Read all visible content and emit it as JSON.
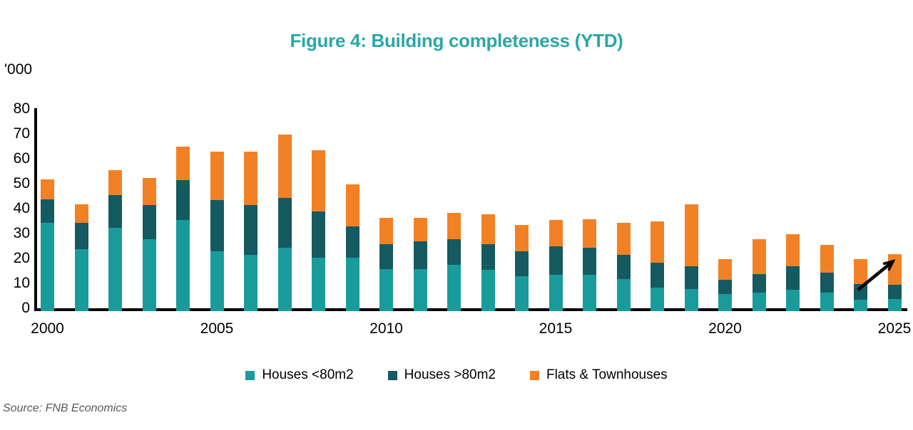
{
  "source": "Source: FNB Economics",
  "colors": {
    "title_text": "#29A8A6",
    "axis": "#000000",
    "source_text": "#595959",
    "series_teal": "#1A9B9B",
    "series_dark_teal": "#155A60",
    "series_orange": "#F28126"
  },
  "chart_data": {
    "type": "bar",
    "stacked": true,
    "title": "Figure 4: Building completeness (YTD)",
    "units_label": "'000",
    "xlabel": "",
    "ylabel": "'000",
    "ylim": [
      0,
      80
    ],
    "yticks": [
      0,
      10,
      20,
      30,
      40,
      50,
      60,
      70,
      80
    ],
    "xticks": [
      "2000",
      "2005",
      "2010",
      "2015",
      "2020",
      "2025"
    ],
    "grid": false,
    "legend_position": "bottom",
    "annotation": {
      "type": "arrow",
      "description": "black upward trend arrow pointing to top of 2025 bar"
    },
    "categories": [
      2000,
      2001,
      2002,
      2003,
      2004,
      2005,
      2006,
      2007,
      2008,
      2009,
      2010,
      2011,
      2012,
      2013,
      2014,
      2015,
      2016,
      2017,
      2018,
      2019,
      2020,
      2021,
      2022,
      2023,
      2024,
      2025
    ],
    "series": [
      {
        "name": "Houses <80m2",
        "color": "#1A9B9B",
        "values": [
          35.5,
          25,
          33.5,
          29,
          36.5,
          24,
          22.5,
          25.5,
          21.5,
          21.5,
          17,
          17,
          18.5,
          16.5,
          14,
          14.5,
          14.5,
          13,
          9.5,
          9,
          7,
          7.5,
          8.5,
          7.5,
          4.5,
          5
        ]
      },
      {
        "name": "Houses >80m2",
        "color": "#155A60",
        "values": [
          9.5,
          10.5,
          13,
          13.5,
          16,
          20.5,
          20,
          20,
          18.5,
          12.5,
          10,
          11,
          10.5,
          10.5,
          10,
          11.5,
          11,
          9.5,
          10,
          9,
          5.5,
          7.5,
          9.5,
          8,
          6.5,
          5.5
        ]
      },
      {
        "name": "Flats & Townhouses",
        "color": "#F28126",
        "values": [
          8,
          7.5,
          10,
          11,
          13.5,
          19.5,
          21.5,
          25.5,
          24.5,
          17,
          10.5,
          9.5,
          10.5,
          12,
          10.5,
          10.5,
          11.5,
          13,
          16.5,
          25,
          8.5,
          14,
          13,
          11,
          10,
          12.5
        ]
      }
    ],
    "totals": [
      53,
      43,
      56.5,
      53.5,
      66,
      64,
      64,
      71,
      64.5,
      51,
      37.5,
      37.5,
      39.5,
      39,
      34.5,
      36.5,
      37,
      35.5,
      36,
      43,
      21,
      29,
      31,
      26.5,
      21,
      23
    ]
  }
}
